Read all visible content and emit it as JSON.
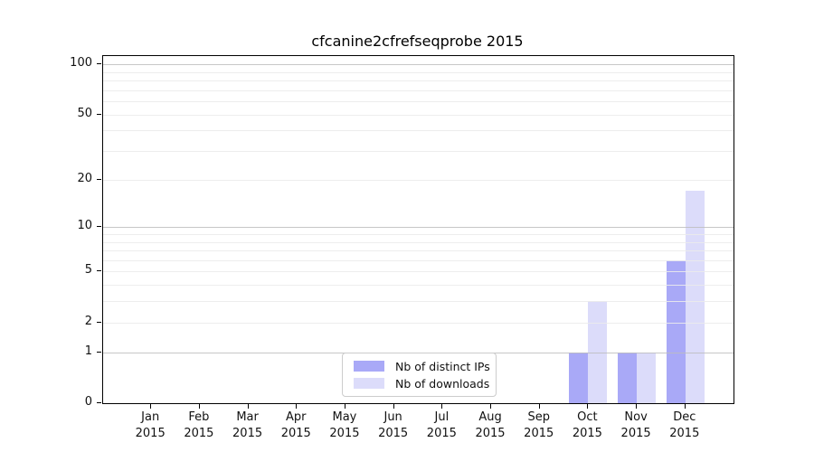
{
  "title": "cfcanine2cfrefseqprobe 2015",
  "chart_data": {
    "type": "bar",
    "title": "cfcanine2cfrefseqprobe 2015",
    "categories": [
      "Jan",
      "Feb",
      "Mar",
      "Apr",
      "May",
      "Jun",
      "Jul",
      "Aug",
      "Sep",
      "Oct",
      "Nov",
      "Dec"
    ],
    "category_year": "2015",
    "series": [
      {
        "name": "Nb of distinct IPs",
        "color": "#a9a9f7",
        "values": [
          0,
          0,
          0,
          0,
          0,
          0,
          0,
          0,
          0,
          1,
          1,
          6
        ]
      },
      {
        "name": "Nb of downloads",
        "color": "#dcdcfa",
        "values": [
          0,
          0,
          0,
          0,
          0,
          0,
          0,
          0,
          0,
          3,
          1,
          17
        ]
      }
    ],
    "yscale": "log1p",
    "ylim": [
      0,
      112
    ],
    "ytick_values": [
      0,
      1,
      2,
      5,
      10,
      20,
      50,
      100
    ],
    "ytick_labels": [
      "0",
      "1",
      "2",
      "5",
      "10",
      "20",
      "50",
      "100"
    ],
    "gridlines": {
      "major": [
        1,
        10,
        100
      ],
      "minor": [
        2,
        3,
        4,
        5,
        6,
        7,
        8,
        9,
        20,
        30,
        40,
        50,
        60,
        70,
        80,
        90
      ]
    },
    "xlabel": "",
    "ylabel": "",
    "grid": true,
    "legend_position": "bottom-center-inside"
  }
}
